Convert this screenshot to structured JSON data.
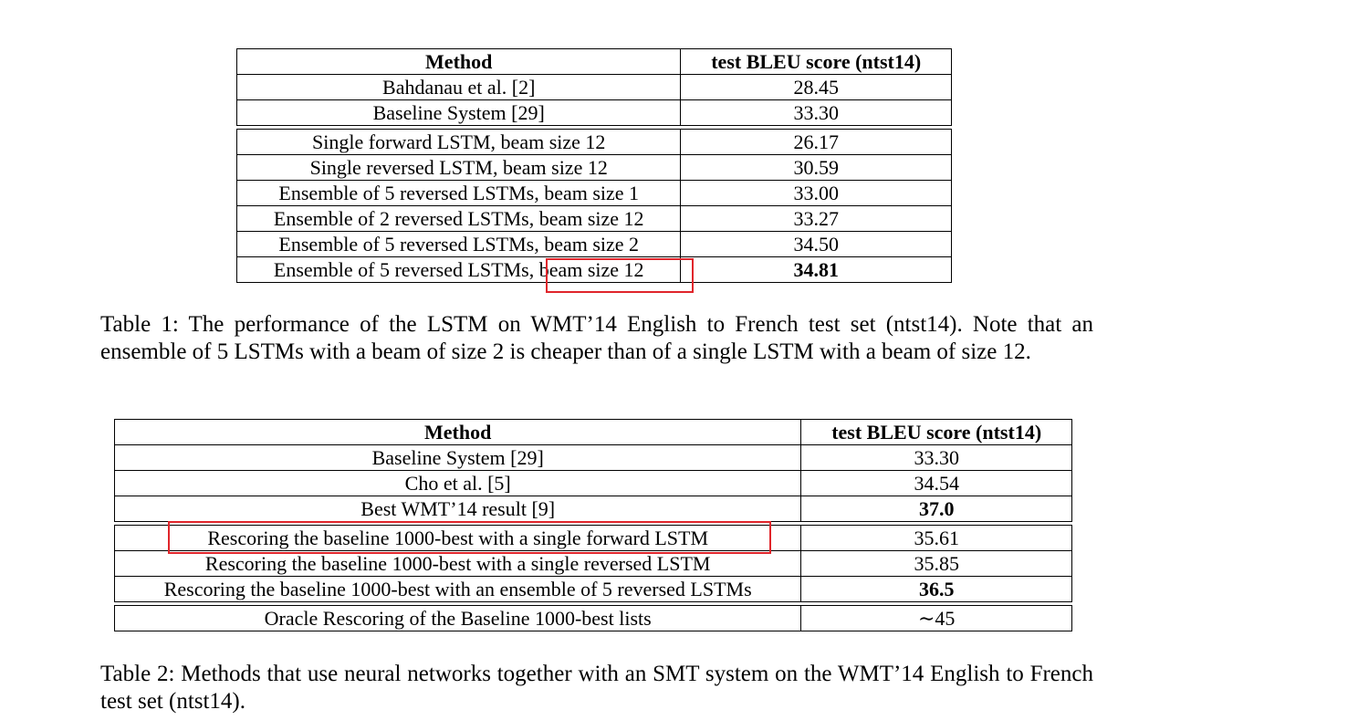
{
  "table1": {
    "header": {
      "method": "Method",
      "score": "test BLEU score (ntst14)"
    },
    "group1": [
      {
        "method": "Bahdanau et al. [2]",
        "score": "28.45"
      },
      {
        "method": "Baseline System [29]",
        "score": "33.30"
      }
    ],
    "group2": [
      {
        "method": "Single forward LSTM, beam size 12",
        "score": "26.17"
      },
      {
        "method": "Single reversed LSTM, beam size 12",
        "score": "30.59"
      },
      {
        "method": "Ensemble of 5 reversed LSTMs, beam size 1",
        "score": "33.00"
      },
      {
        "method": "Ensemble of 2 reversed LSTMs, beam size 12",
        "score": "33.27"
      },
      {
        "method": "Ensemble of 5 reversed LSTMs, beam size 2",
        "score": "34.50"
      },
      {
        "method": "Ensemble of 5 reversed LSTMs, beam size 12",
        "score": "34.81"
      }
    ],
    "caption": "Table 1: The performance of the LSTM on WMT’14 English to French test set (ntst14). Note that an ensemble of 5 LSTMs with a beam of size 2 is cheaper than of a single LSTM with a beam of size 12."
  },
  "table2": {
    "header": {
      "method": "Method",
      "score": "test BLEU score (ntst14)"
    },
    "group1": [
      {
        "method": "Baseline System [29]",
        "score": "33.30"
      },
      {
        "method": "Cho et al. [5]",
        "score": "34.54"
      },
      {
        "method": "Best WMT’14 result [9]",
        "score": "37.0"
      }
    ],
    "group2": [
      {
        "method": "Rescoring the baseline 1000-best with a single forward LSTM",
        "score": "35.61"
      },
      {
        "method": "Rescoring the baseline 1000-best with a single reversed LSTM",
        "score": "35.85"
      },
      {
        "method": "Rescoring the baseline 1000-best with an ensemble of 5 reversed LSTMs",
        "score": "36.5"
      }
    ],
    "group3": [
      {
        "method": "Oracle Rescoring of the Baseline 1000-best lists",
        "score": "∼45"
      }
    ],
    "caption": "Table 2: Methods that use neural networks together with an SMT system on the WMT’14 English to French test set (ntst14)."
  },
  "highlight_color": "#e0252b"
}
